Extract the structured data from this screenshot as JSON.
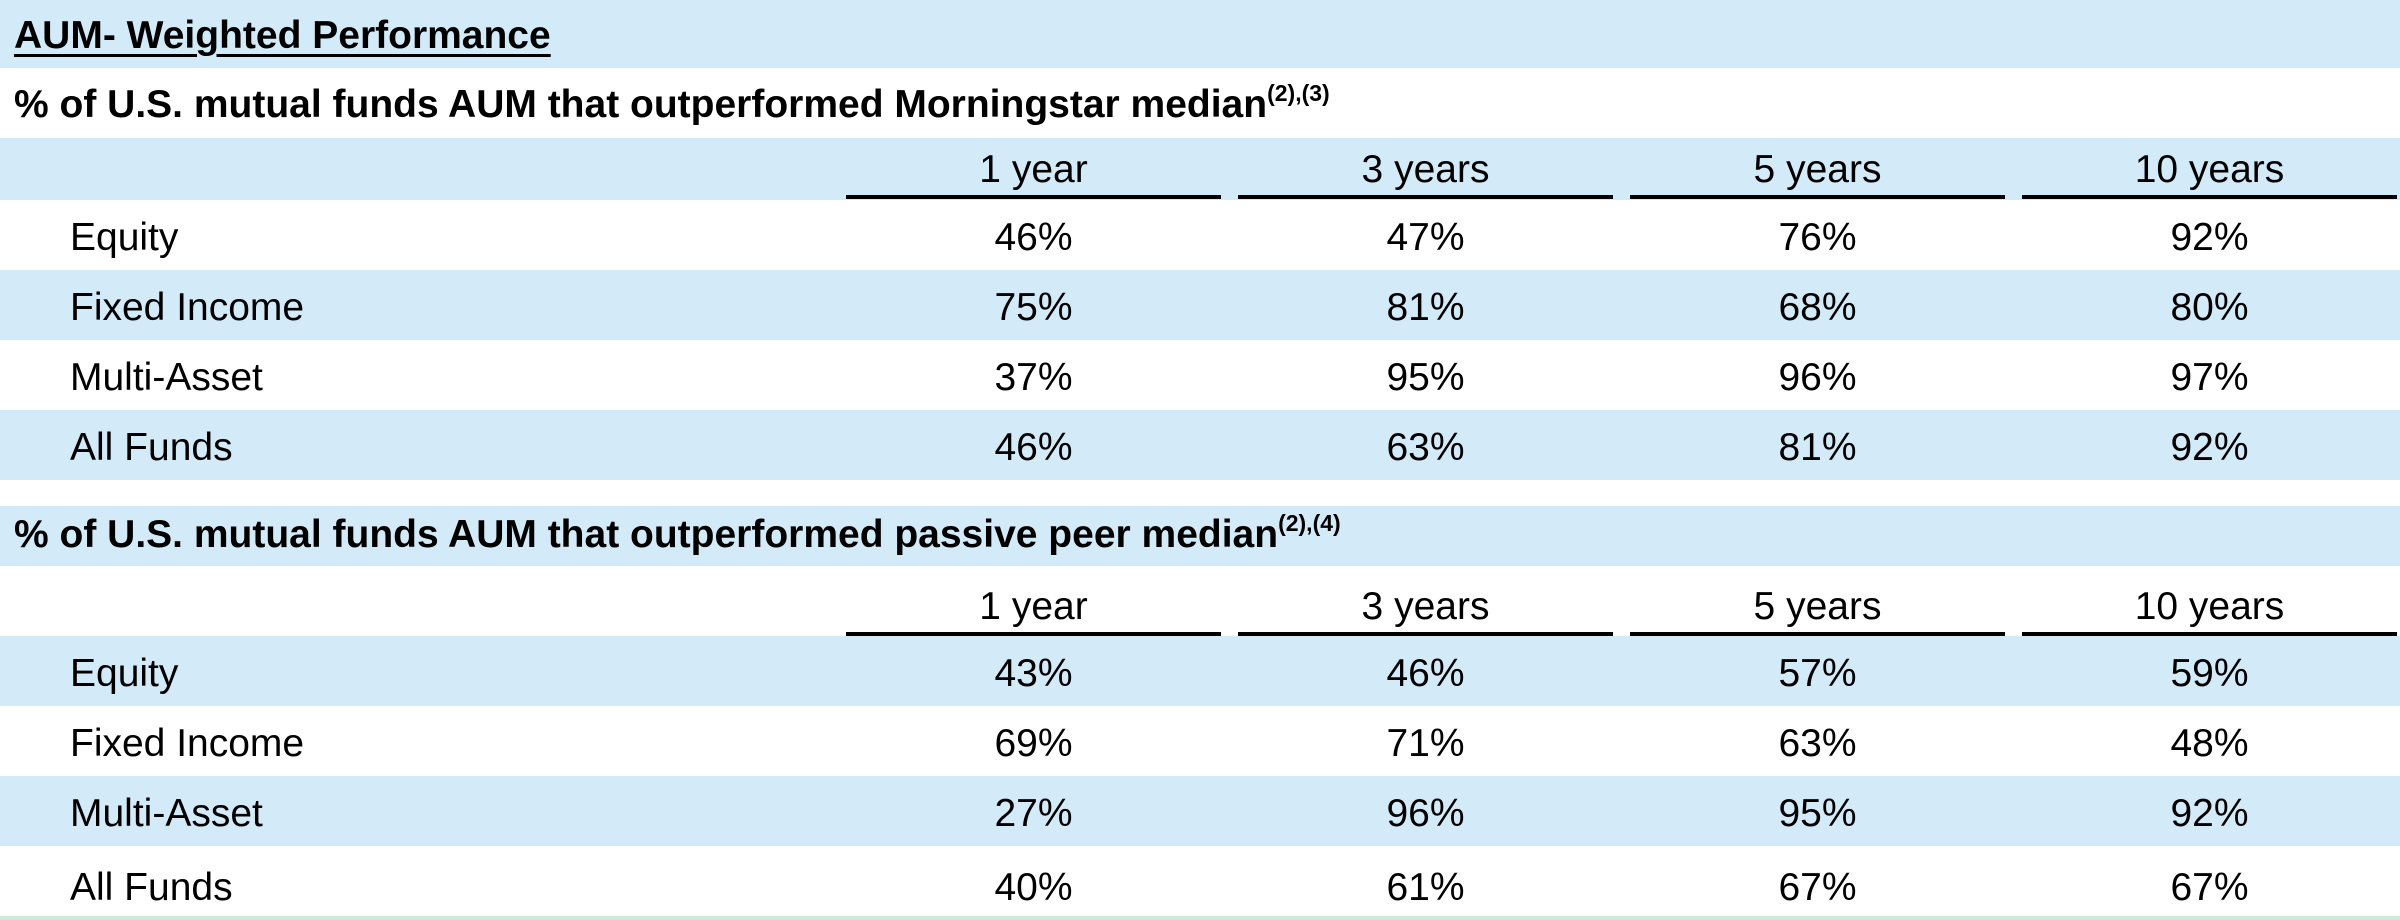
{
  "title": "AUM- Weighted Performance",
  "columns": [
    "1 year",
    "3 years",
    "5 years",
    "10 years"
  ],
  "sections": [
    {
      "heading": "% of U.S. mutual funds AUM that outperformed Morningstar median",
      "footnote": "(2),(3)",
      "rows": [
        {
          "label": "Equity",
          "values": [
            "46%",
            "47%",
            "76%",
            "92%"
          ]
        },
        {
          "label": "Fixed Income",
          "values": [
            "75%",
            "81%",
            "68%",
            "80%"
          ]
        },
        {
          "label": "Multi-Asset",
          "values": [
            "37%",
            "95%",
            "96%",
            "97%"
          ]
        },
        {
          "label": "All Funds",
          "values": [
            "46%",
            "63%",
            "81%",
            "92%"
          ]
        }
      ]
    },
    {
      "heading": "% of U.S. mutual funds AUM that outperformed passive peer median",
      "footnote": "(2),(4)",
      "rows": [
        {
          "label": "Equity",
          "values": [
            "43%",
            "46%",
            "57%",
            "59%"
          ]
        },
        {
          "label": "Fixed Income",
          "values": [
            "69%",
            "71%",
            "63%",
            "48%"
          ]
        },
        {
          "label": "Multi-Asset",
          "values": [
            "27%",
            "96%",
            "95%",
            "92%"
          ]
        },
        {
          "label": "All Funds",
          "values": [
            "40%",
            "61%",
            "67%",
            "67%"
          ]
        }
      ]
    }
  ],
  "colors": {
    "band_blue": "#d3eaf9",
    "rule": "#000000"
  }
}
